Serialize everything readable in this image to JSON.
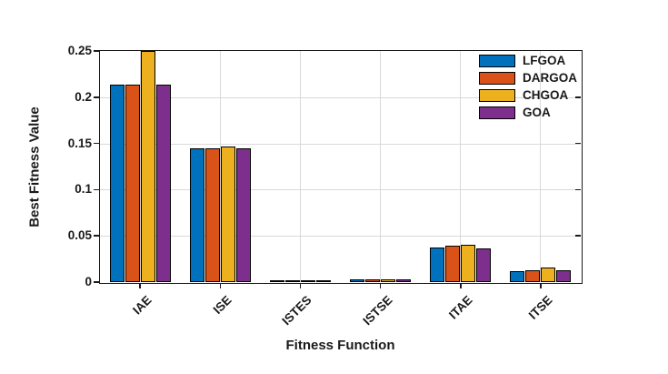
{
  "chart_data": {
    "type": "bar",
    "title": "",
    "xlabel": "Fitness Function",
    "ylabel": "Best Fitness Value",
    "categories": [
      "IAE",
      "ISE",
      "ISTES",
      "ISTSE",
      "ITAE",
      "ITSE"
    ],
    "series": [
      {
        "name": "LFGOA",
        "color": "#0072BD",
        "values": [
          0.214,
          0.1445,
          0.0004,
          0.0027,
          0.0375,
          0.012
        ]
      },
      {
        "name": "DARGOA",
        "color": "#D95319",
        "values": [
          0.214,
          0.1445,
          0.0006,
          0.0027,
          0.0393,
          0.013
        ]
      },
      {
        "name": "CHGOA",
        "color": "#EDB120",
        "values": [
          0.25,
          0.1465,
          0.0012,
          0.0033,
          0.0405,
          0.0155
        ]
      },
      {
        "name": "GOA",
        "color": "#7E2F8E",
        "values": [
          0.214,
          0.1445,
          0.001,
          0.0027,
          0.0368,
          0.0125
        ]
      }
    ],
    "ylim": [
      0,
      0.25
    ],
    "yticks": [
      0,
      0.05,
      0.1,
      0.15,
      0.2,
      0.25
    ],
    "ytick_labels": [
      "0",
      "0.05",
      "0.1",
      "0.15",
      "0.2",
      "0.25"
    ],
    "grid": true,
    "legend_position": "top-right-inside",
    "bar_edge_color": "#000000",
    "axis_color": "#1a1a1a",
    "grid_color": "#d9d9d9",
    "background": "#ffffff"
  }
}
